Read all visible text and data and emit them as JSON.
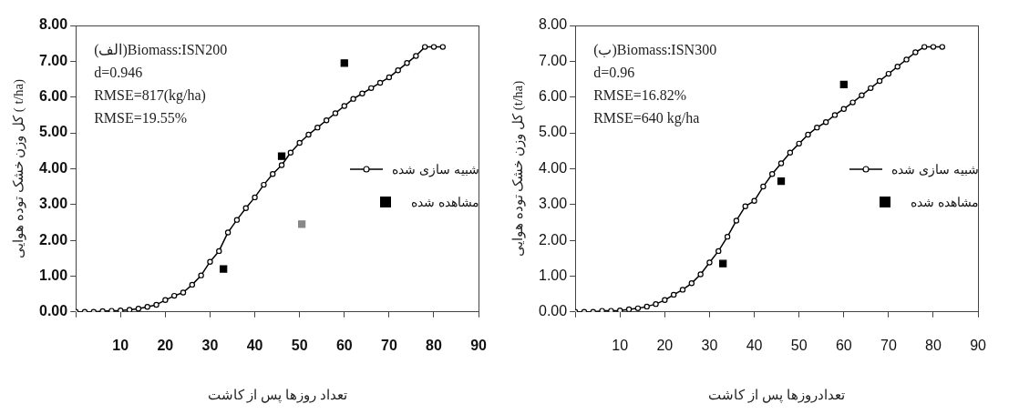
{
  "chart_data": [
    {
      "type": "line",
      "xlabel": "تعداد روزها پس از کاشت",
      "ylabel": "کل وزن خشک توده هوایی ( t/ha)",
      "xlim": [
        0,
        90
      ],
      "xticks": [
        {
          "value": 0,
          "label": null
        },
        10,
        20,
        30,
        40,
        50,
        60,
        70,
        80,
        90
      ],
      "ylim": [
        0,
        8
      ],
      "yticks": [
        {
          "value": 0,
          "label": "0.00"
        },
        {
          "value": 1,
          "label": "1.00"
        },
        {
          "value": 2,
          "label": "2.00"
        },
        {
          "value": 3,
          "label": "3.00"
        },
        {
          "value": 4,
          "label": "4.00"
        },
        {
          "value": 5,
          "label": "5.00"
        },
        {
          "value": 6,
          "label": "6.00"
        },
        {
          "value": 7,
          "label": "7.00"
        },
        {
          "value": 8,
          "label": "8.00"
        }
      ],
      "grid": false,
      "legend": "right",
      "annotations": [
        "(الف)Biomass:ISN200",
        "d=0.946",
        "RMSE=817(kg/ha)",
        "RMSE=19.55%"
      ],
      "series": [
        {
          "type": "line",
          "name": "شبیه سازی شده",
          "color": "#000000",
          "marker": "circle",
          "x": [
            0,
            2,
            4,
            6,
            8,
            10,
            12,
            14,
            16,
            18,
            20,
            22,
            24,
            26,
            28,
            30,
            32,
            34,
            36,
            38,
            40,
            42,
            44,
            46,
            48,
            50,
            52,
            54,
            56,
            58,
            60,
            62,
            64,
            66,
            68,
            70,
            72,
            74,
            76,
            78,
            80,
            82
          ],
          "values": [
            0,
            0,
            0,
            0.02,
            0.03,
            0.04,
            0.06,
            0.09,
            0.14,
            0.2,
            0.33,
            0.45,
            0.54,
            0.76,
            1.02,
            1.4,
            1.7,
            2.22,
            2.57,
            2.9,
            3.2,
            3.55,
            3.85,
            4.1,
            4.45,
            4.72,
            4.95,
            5.15,
            5.35,
            5.55,
            5.75,
            5.95,
            6.1,
            6.25,
            6.4,
            6.55,
            6.75,
            6.95,
            7.15,
            7.4,
            7.4,
            7.4
          ]
        },
        {
          "type": "scatter",
          "name": "مشاهده شده",
          "color": "#000000",
          "marker": "square",
          "x": [
            33,
            46,
            60
          ],
          "values": [
            1.2,
            4.35,
            6.95
          ]
        },
        {
          "type": "scatter",
          "color": "#888888",
          "marker": "square",
          "x": [
            50.5
          ],
          "values": [
            2.45
          ]
        }
      ]
    },
    {
      "type": "line",
      "xlabel": "تعدادروزها پس از کاشت",
      "ylabel": "کل وزن خشک توده هوایی (t/ha)",
      "xlim": [
        0,
        90
      ],
      "xticks": [
        {
          "value": 0,
          "label": null
        },
        10,
        20,
        30,
        40,
        50,
        60,
        70,
        80,
        90
      ],
      "ylim": [
        0,
        8
      ],
      "yticks": [
        {
          "value": 0,
          "label": "0.00"
        },
        {
          "value": 1,
          "label": "1.00"
        },
        {
          "value": 2,
          "label": "2.00"
        },
        {
          "value": 3,
          "label": "3.00"
        },
        {
          "value": 4,
          "label": "4.00"
        },
        {
          "value": 5,
          "label": "5.00"
        },
        {
          "value": 6,
          "label": "6.00"
        },
        {
          "value": 7,
          "label": "7.00"
        },
        {
          "value": 8,
          "label": "8.00"
        }
      ],
      "grid": false,
      "legend": "right",
      "annotations": [
        "(ب)Biomass:ISN300",
        "d=0.96",
        "RMSE=16.82%",
        "RMSE=640 kg/ha"
      ],
      "series": [
        {
          "type": "line",
          "name": "شبیه سازی شده",
          "color": "#000000",
          "marker": "circle",
          "x": [
            0,
            2,
            4,
            6,
            8,
            10,
            12,
            14,
            16,
            18,
            20,
            22,
            24,
            26,
            28,
            30,
            32,
            34,
            36,
            38,
            40,
            42,
            44,
            46,
            48,
            50,
            52,
            54,
            56,
            58,
            60,
            62,
            64,
            66,
            68,
            70,
            72,
            74,
            76,
            78,
            80,
            82
          ],
          "values": [
            0,
            0,
            0,
            0.03,
            0.03,
            0.04,
            0.07,
            0.1,
            0.15,
            0.22,
            0.33,
            0.48,
            0.62,
            0.8,
            1.05,
            1.38,
            1.7,
            2.1,
            2.55,
            2.95,
            3.1,
            3.5,
            3.85,
            4.15,
            4.45,
            4.7,
            4.95,
            5.15,
            5.3,
            5.5,
            5.67,
            5.85,
            6.05,
            6.25,
            6.45,
            6.65,
            6.85,
            7.05,
            7.25,
            7.4,
            7.4,
            7.4
          ]
        },
        {
          "type": "scatter",
          "name": "مشاهده شده",
          "color": "#000000",
          "marker": "square",
          "x": [
            33,
            46,
            60
          ],
          "values": [
            1.35,
            3.65,
            6.35
          ]
        }
      ]
    }
  ]
}
